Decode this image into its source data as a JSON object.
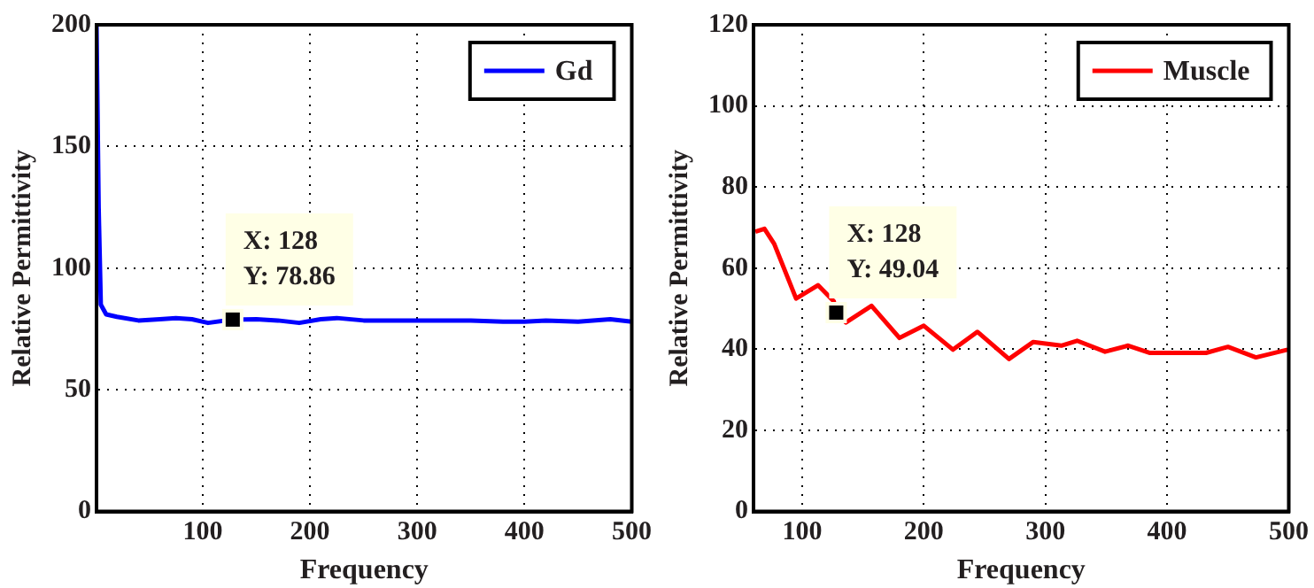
{
  "chart_data": [
    {
      "type": "line",
      "xlabel": "Frequency",
      "ylabel": "Relative Permittivity",
      "xlim": [
        1,
        500
      ],
      "xticks": [
        100,
        200,
        300,
        400,
        500
      ],
      "ylim": [
        0,
        200
      ],
      "yticks": [
        0,
        50,
        100,
        150,
        200
      ],
      "grid": true,
      "legend": "top right",
      "x": [
        1,
        3,
        5,
        10,
        20,
        40,
        60,
        75,
        90,
        105,
        128,
        150,
        170,
        190,
        210,
        225,
        250,
        300,
        350,
        380,
        400,
        420,
        450,
        480,
        500
      ],
      "series": [
        {
          "name": "Gd",
          "color": "#0000ff",
          "values": [
            200,
            125,
            85,
            81,
            80,
            78.5,
            79,
            79.5,
            79,
            77.5,
            78.86,
            79,
            78.5,
            77.5,
            79,
            79.5,
            78.5,
            78.5,
            78.5,
            78,
            78,
            78.5,
            78,
            79,
            78
          ]
        }
      ],
      "annotations": [
        {
          "text": "X: 128\nY: 78.86",
          "x": 128,
          "y": 78.86
        }
      ]
    },
    {
      "type": "line",
      "xlabel": "Frequency",
      "ylabel": "Relative Permittivity",
      "xlim": [
        60,
        500
      ],
      "xticks": [
        100,
        200,
        300,
        400,
        500
      ],
      "ylim": [
        0,
        120
      ],
      "yticks": [
        0,
        20,
        40,
        60,
        80,
        100,
        120
      ],
      "grid": true,
      "legend": "top right",
      "x": [
        61.5,
        69,
        77,
        95,
        113,
        126,
        128,
        136,
        157,
        180,
        200,
        224,
        244,
        270,
        290,
        313,
        326,
        349,
        368,
        386,
        406,
        432,
        450,
        473,
        499
      ],
      "series": [
        {
          "name": "Muscle",
          "color": "#ff0000",
          "values": [
            69,
            69.7,
            66,
            52.5,
            55.8,
            51.8,
            49.04,
            46.6,
            50.7,
            42.8,
            45.8,
            39.9,
            44.3,
            37.6,
            41.8,
            40.9,
            42.1,
            39.4,
            40.9,
            39.1,
            39.1,
            39.1,
            40.6,
            38,
            39.9
          ]
        }
      ],
      "annotations": [
        {
          "text": "X: 128\nY: 49.04",
          "x": 128,
          "y": 49.04
        }
      ]
    }
  ]
}
